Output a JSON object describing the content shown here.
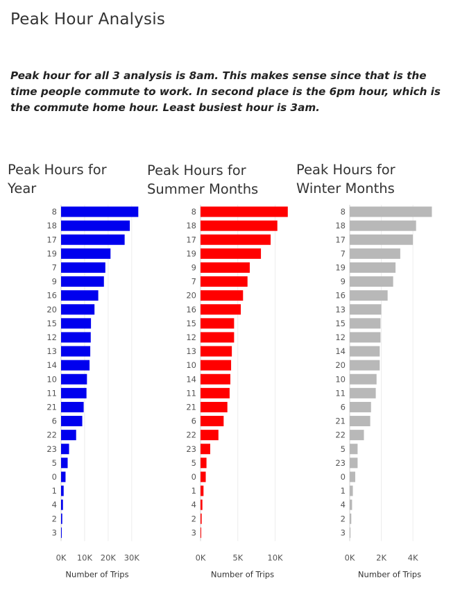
{
  "page": {
    "title": "Peak Hour Analysis",
    "description": "Peak hour for all 3 analysis is 8am. This makes sense since that is the time people commute to work. In second place is the 6pm hour, which is the commute home hour. Least busiest hour is 3am."
  },
  "chart_data": [
    {
      "type": "bar",
      "orientation": "horizontal",
      "title_line1": "Peak Hours for",
      "title_line2": "Year",
      "xlabel": "Number of Trips",
      "color": "#0000ee",
      "xlim": [
        0,
        33000
      ],
      "xticks": [
        0,
        10000,
        20000,
        30000
      ],
      "xtick_labels": [
        "0K",
        "10K",
        "20K",
        "30K"
      ],
      "categories": [
        "8",
        "18",
        "17",
        "19",
        "7",
        "9",
        "16",
        "20",
        "15",
        "12",
        "13",
        "14",
        "10",
        "11",
        "21",
        "6",
        "22",
        "23",
        "5",
        "0",
        "1",
        "4",
        "2",
        "3"
      ],
      "values": [
        32800,
        29200,
        27000,
        21000,
        18800,
        18200,
        15800,
        14200,
        12700,
        12600,
        12400,
        12100,
        11000,
        10800,
        9600,
        9000,
        6400,
        3400,
        2800,
        1900,
        1100,
        800,
        500,
        150
      ]
    },
    {
      "type": "bar",
      "orientation": "horizontal",
      "title_line1": "Peak Hours for",
      "title_line2": "Summer Months",
      "xlabel": "Number of Trips",
      "color": "#ff0000",
      "xlim": [
        0,
        12000
      ],
      "xticks": [
        0,
        5000,
        10000
      ],
      "xtick_labels": [
        "0K",
        "5K",
        "10K"
      ],
      "categories": [
        "8",
        "18",
        "17",
        "19",
        "9",
        "7",
        "20",
        "16",
        "15",
        "12",
        "13",
        "10",
        "14",
        "11",
        "21",
        "6",
        "22",
        "23",
        "5",
        "0",
        "1",
        "4",
        "2",
        "3"
      ],
      "values": [
        11700,
        10300,
        9400,
        8100,
        6600,
        6300,
        5700,
        5400,
        4500,
        4500,
        4200,
        4100,
        4000,
        3900,
        3600,
        3100,
        2400,
        1300,
        800,
        700,
        400,
        250,
        150,
        50
      ]
    },
    {
      "type": "bar",
      "orientation": "horizontal",
      "title_line1": "Peak Hours for",
      "title_line2": "Winter Months",
      "xlabel": "Number of Trips",
      "color": "#b8b8b8",
      "xlim": [
        0,
        5400
      ],
      "xticks": [
        0,
        2000,
        4000
      ],
      "xtick_labels": [
        "0K",
        "2K",
        "4K"
      ],
      "categories": [
        "8",
        "18",
        "17",
        "7",
        "19",
        "9",
        "16",
        "13",
        "15",
        "12",
        "14",
        "20",
        "10",
        "11",
        "6",
        "21",
        "22",
        "5",
        "23",
        "0",
        "1",
        "4",
        "2",
        "3"
      ],
      "values": [
        5200,
        4200,
        4000,
        3200,
        2900,
        2750,
        2400,
        2000,
        1950,
        1950,
        1900,
        1900,
        1700,
        1650,
        1350,
        1300,
        900,
        500,
        500,
        350,
        200,
        150,
        100,
        50
      ]
    }
  ]
}
